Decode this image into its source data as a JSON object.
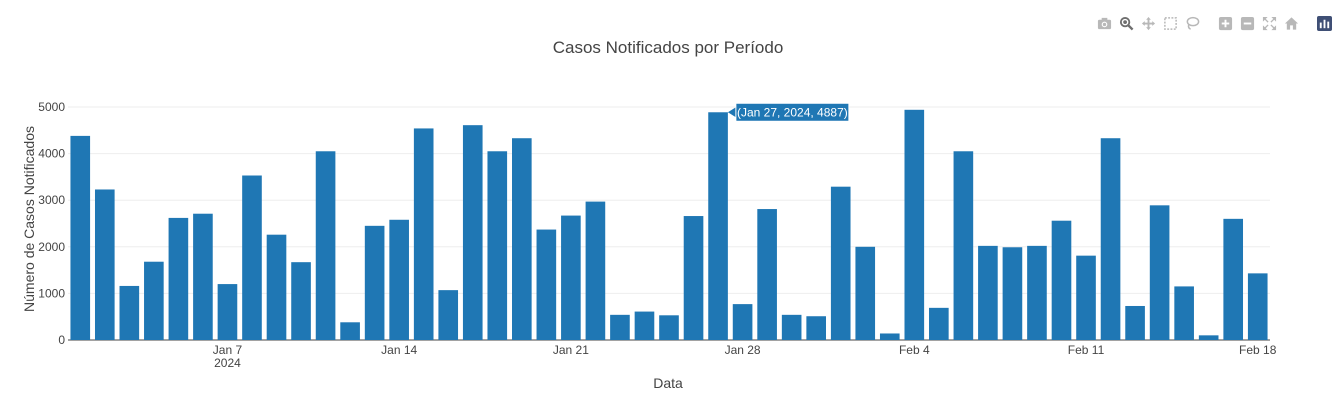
{
  "modebar": {
    "buttons": [
      {
        "icon": "camera-icon",
        "name": "download-plot-button",
        "active": false
      },
      {
        "icon": "zoom-icon",
        "name": "zoom-button",
        "active": true
      },
      {
        "icon": "pan-icon",
        "name": "pan-button",
        "active": false
      },
      {
        "icon": "box-select-icon",
        "name": "box-select-button",
        "active": false
      },
      {
        "icon": "lasso-select-icon",
        "name": "lasso-select-button",
        "active": false
      },
      {
        "icon": "zoom-in-icon",
        "name": "zoom-in-button",
        "active": false
      },
      {
        "icon": "zoom-out-icon",
        "name": "zoom-out-button",
        "active": false
      },
      {
        "icon": "autoscale-icon",
        "name": "autoscale-button",
        "active": false
      },
      {
        "icon": "home-icon",
        "name": "reset-axes-button",
        "active": false
      },
      {
        "icon": "plotly-logo-icon",
        "name": "plotly-logo-button",
        "active": false
      }
    ],
    "icon_color": "#b8b8b8",
    "active_color": "#6e6e6e",
    "logo_color": "#3f4f75"
  },
  "chart_data": {
    "type": "bar",
    "title": "Casos Notificados por Período",
    "xlabel": "Data",
    "ylabel": "Número de Casos Notificados",
    "bar_color": "#1f77b4",
    "x": [
      "2024-01-01",
      "2024-01-02",
      "2024-01-03",
      "2024-01-04",
      "2024-01-05",
      "2024-01-06",
      "2024-01-07",
      "2024-01-08",
      "2024-01-09",
      "2024-01-10",
      "2024-01-11",
      "2024-01-12",
      "2024-01-13",
      "2024-01-14",
      "2024-01-15",
      "2024-01-16",
      "2024-01-17",
      "2024-01-18",
      "2024-01-19",
      "2024-01-20",
      "2024-01-21",
      "2024-01-22",
      "2024-01-23",
      "2024-01-24",
      "2024-01-25",
      "2024-01-26",
      "2024-01-27",
      "2024-01-28",
      "2024-01-29",
      "2024-01-30",
      "2024-01-31",
      "2024-02-01",
      "2024-02-02",
      "2024-02-03",
      "2024-02-04",
      "2024-02-05",
      "2024-02-06",
      "2024-02-07",
      "2024-02-08",
      "2024-02-09",
      "2024-02-10",
      "2024-02-11",
      "2024-02-12",
      "2024-02-13",
      "2024-02-14",
      "2024-02-15",
      "2024-02-16",
      "2024-02-17",
      "2024-02-18"
    ],
    "values": [
      4380,
      3230,
      1160,
      1680,
      2620,
      2710,
      1200,
      3530,
      2260,
      1670,
      4050,
      380,
      2450,
      2580,
      4540,
      1070,
      4610,
      4050,
      4330,
      2370,
      2670,
      2970,
      540,
      610,
      530,
      2660,
      4887,
      770,
      2810,
      540,
      510,
      3290,
      2000,
      140,
      4940,
      690,
      4050,
      2020,
      1990,
      2020,
      2560,
      1810,
      4330,
      730,
      2890,
      1150,
      100,
      2600,
      1430
    ],
    "ylim": [
      0,
      5000
    ],
    "yticks": [
      0,
      1000,
      2000,
      3000,
      4000,
      5000
    ],
    "xticks": [
      {
        "date": "2024-01-07",
        "label": "Jan 7",
        "sublabel": "2024"
      },
      {
        "date": "2024-01-14",
        "label": "Jan 14",
        "sublabel": ""
      },
      {
        "date": "2024-01-21",
        "label": "Jan 21",
        "sublabel": ""
      },
      {
        "date": "2024-01-28",
        "label": "Jan 28",
        "sublabel": ""
      },
      {
        "date": "2024-02-04",
        "label": "Feb 4",
        "sublabel": ""
      },
      {
        "date": "2024-02-11",
        "label": "Feb 11",
        "sublabel": ""
      },
      {
        "date": "2024-02-18",
        "label": "Feb 18",
        "sublabel": ""
      }
    ],
    "grid": true,
    "hover": {
      "date": "2024-01-27",
      "label": "(Jan 27, 2024, 4887)",
      "color": "#1f77b4"
    }
  }
}
